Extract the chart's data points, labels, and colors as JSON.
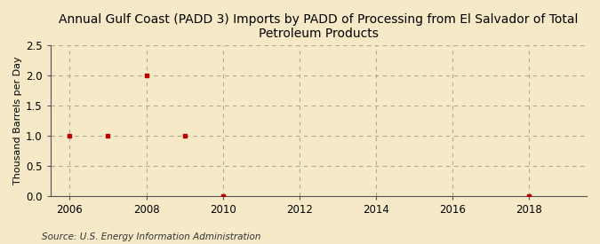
{
  "title": "Annual Gulf Coast (PADD 3) Imports by PADD of Processing from El Salvador of Total\nPetroleum Products",
  "ylabel": "Thousand Barrels per Day",
  "source": "Source: U.S. Energy Information Administration",
  "background_color": "#f5e9c8",
  "plot_background_color": "#f5e9c8",
  "data_x": [
    2006,
    2007,
    2008,
    2009,
    2010,
    2018
  ],
  "data_y": [
    1.0,
    1.0,
    2.0,
    1.0,
    0.0,
    0.0
  ],
  "marker_color": "#bb0000",
  "marker_shape": "s",
  "marker_size": 3.5,
  "xlim": [
    2005.5,
    2019.5
  ],
  "ylim": [
    0.0,
    2.5
  ],
  "yticks": [
    0.0,
    0.5,
    1.0,
    1.5,
    2.0,
    2.5
  ],
  "xticks": [
    2006,
    2008,
    2010,
    2012,
    2014,
    2016,
    2018
  ],
  "grid_color": "#b0a898",
  "grid_style": "--",
  "title_fontsize": 10,
  "axis_fontsize": 8,
  "tick_fontsize": 8.5,
  "source_fontsize": 7.5
}
